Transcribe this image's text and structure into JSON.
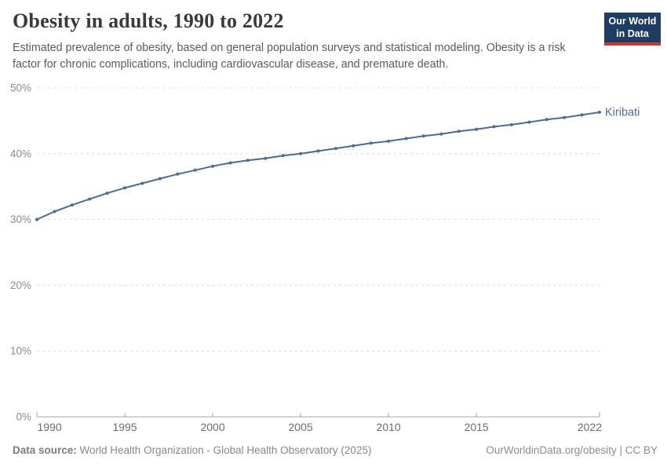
{
  "header": {
    "title": "Obesity in adults, 1990 to 2022",
    "subtitle": "Estimated prevalence of obesity, based on general population surveys and statistical modeling. Obesity is a risk factor for chronic complications, including cardiovascular disease, and premature death.",
    "logo": {
      "line1": "Our World",
      "line2": "in Data",
      "bg_color": "#1d3d63",
      "accent_color": "#cf342b"
    }
  },
  "chart_data": {
    "type": "line",
    "title": "Obesity in adults, 1990 to 2022",
    "x": [
      1990,
      1991,
      1992,
      1993,
      1994,
      1995,
      1996,
      1997,
      1998,
      1999,
      2000,
      2001,
      2002,
      2003,
      2004,
      2005,
      2006,
      2007,
      2008,
      2009,
      2010,
      2011,
      2012,
      2013,
      2014,
      2015,
      2016,
      2017,
      2018,
      2019,
      2020,
      2021,
      2022
    ],
    "series": [
      {
        "name": "Kiribati",
        "color": "#4c6a9c",
        "values": [
          30.0,
          31.2,
          32.2,
          33.1,
          34.0,
          34.8,
          35.5,
          36.2,
          36.9,
          37.5,
          38.1,
          38.6,
          39.0,
          39.3,
          39.7,
          40.0,
          40.4,
          40.8,
          41.2,
          41.6,
          41.9,
          42.3,
          42.7,
          43.0,
          43.4,
          43.7,
          44.1,
          44.4,
          44.8,
          45.2,
          45.5,
          45.9,
          46.3
        ]
      }
    ],
    "ylim": [
      0,
      50
    ],
    "yticks": [
      0,
      10,
      20,
      30,
      40,
      50
    ],
    "ytick_suffix": "%",
    "xticks": [
      1990,
      1995,
      2000,
      2005,
      2010,
      2015,
      2022
    ],
    "grid": "horizontal-dashed",
    "legend": "line-end-label",
    "xlabel": "",
    "ylabel": ""
  },
  "footer": {
    "datasource_label": "Data source:",
    "datasource_text": " World Health Organization - Global Health Observatory (2025)",
    "link_text": "OurWorldinData.org/obesity | CC BY"
  }
}
